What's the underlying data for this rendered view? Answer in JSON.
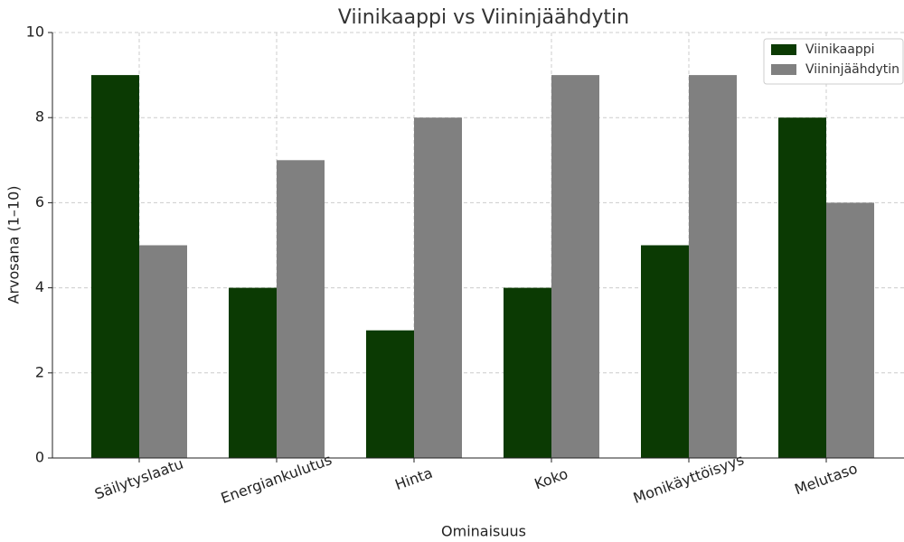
{
  "chart_data": {
    "type": "bar",
    "title": "Viinikaappi vs Viininjäähdytin",
    "x_label": "Ominaisuus",
    "y_label": "Arvosana (1–10)",
    "categories": [
      "Säilytyslaatu",
      "Energiankulutus",
      "Hinta",
      "Koko",
      "Monikäyttöisyys",
      "Melutaso"
    ],
    "series": [
      {
        "name": "Viinikaappi",
        "color": "#0b3a03",
        "values": [
          9,
          4,
          3,
          4,
          5,
          8
        ]
      },
      {
        "name": "Viininjäähdytin",
        "color": "#808080",
        "values": [
          5,
          7,
          8,
          9,
          9,
          6
        ]
      }
    ],
    "ylim": [
      0,
      10
    ],
    "yticks": [
      0,
      2,
      4,
      6,
      8,
      10
    ],
    "grid": true,
    "legend": "upper right"
  }
}
